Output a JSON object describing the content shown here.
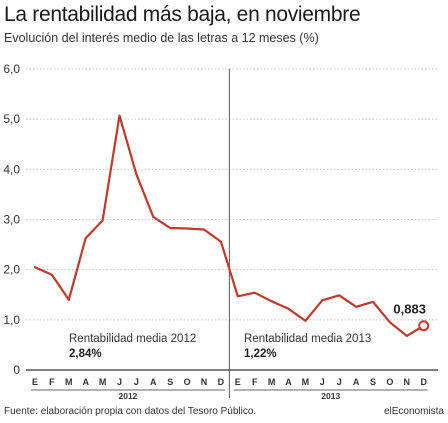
{
  "chart_data": {
    "type": "line",
    "title": "La rentabilidad más baja, en noviembre",
    "subtitle": "Evolución del interés medio de las letras a 12 meses (%)",
    "xlabel": "",
    "ylabel": "",
    "ylim": [
      0,
      6
    ],
    "yticks": [
      "0",
      "1,0",
      "2,0",
      "3,0",
      "4,0",
      "5,0",
      "6,0"
    ],
    "grid": true,
    "categories": [
      "E",
      "F",
      "M",
      "A",
      "M",
      "J",
      "J",
      "A",
      "S",
      "O",
      "N",
      "D",
      "E",
      "F",
      "M",
      "A",
      "M",
      "J",
      "J",
      "A",
      "S",
      "O",
      "N",
      "D"
    ],
    "years": [
      {
        "label": "2012",
        "start": 0,
        "end": 11
      },
      {
        "label": "2013",
        "start": 12,
        "end": 23
      }
    ],
    "x": [
      0,
      1,
      2,
      3,
      4,
      5,
      6,
      7,
      8,
      9,
      10,
      11,
      12,
      13,
      14,
      15,
      16,
      17,
      18,
      19,
      20,
      21,
      22,
      23
    ],
    "series": [
      {
        "name": "",
        "color": "#c0392b",
        "values": [
          2.05,
          1.9,
          1.4,
          2.63,
          2.98,
          5.07,
          3.9,
          3.05,
          2.83,
          2.82,
          2.8,
          2.56,
          1.47,
          1.54,
          1.37,
          1.22,
          0.98,
          1.39,
          1.49,
          1.26,
          1.36,
          0.95,
          0.68,
          0.883
        ]
      }
    ],
    "annotations": [
      {
        "label": "Rentabilidad media 2012",
        "value": "2,84%"
      },
      {
        "label": "Rentabilidad media 2013",
        "value": "1,22%"
      }
    ],
    "last_value_label": "0,883",
    "divider_after_index": 11
  },
  "footer": {
    "source": "Fuente: elaboración propia con datos del Tesoro Público.",
    "brand": "elEconomista"
  },
  "colors": {
    "line": "#c0392b",
    "grid": "#c8c8c8",
    "axis": "#333333",
    "divider": "#555555"
  }
}
